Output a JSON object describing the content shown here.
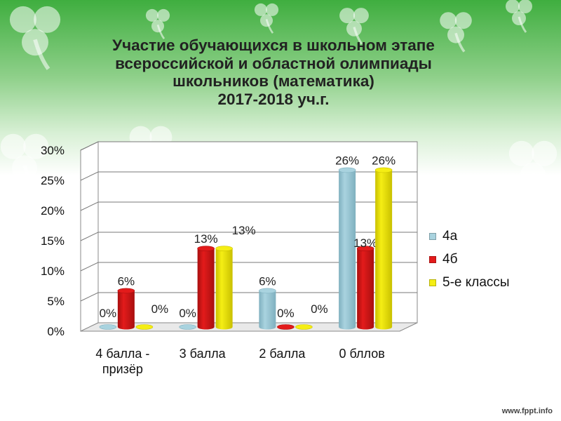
{
  "title": "Участие обучающихся в школьном этапе\nвсероссийской и областной олимпиады\nшкольников (математика)\n2017-2018 уч.г.",
  "watermark": "www.fppt.info",
  "legend": [
    {
      "label": "4а",
      "color": "#a9d3df"
    },
    {
      "label": "4б",
      "color": "#e31b1b"
    },
    {
      "label": "5-е классы",
      "color": "#f5ee14"
    }
  ],
  "chart_data": {
    "type": "bar",
    "categories": [
      "4 балла -\nпризёр",
      "3 балла",
      "2 балла",
      "0 бллов"
    ],
    "series": [
      {
        "name": "4а",
        "values": [
          0,
          0,
          6,
          26
        ],
        "labels": [
          "0%",
          "0%",
          "6%",
          "26%"
        ]
      },
      {
        "name": "4б",
        "values": [
          6,
          13,
          0,
          13
        ],
        "labels": [
          "6%",
          "13%",
          "0%",
          "13%"
        ]
      },
      {
        "name": "5-е классы",
        "values": [
          0,
          13,
          0,
          26
        ],
        "labels": [
          "0%",
          "13%",
          "0%",
          "26%"
        ]
      }
    ],
    "yticks": [
      "0%",
      "5%",
      "10%",
      "15%",
      "20%",
      "25%",
      "30%"
    ],
    "ylim": [
      0,
      30
    ],
    "grid": true,
    "legend_position": "right"
  }
}
